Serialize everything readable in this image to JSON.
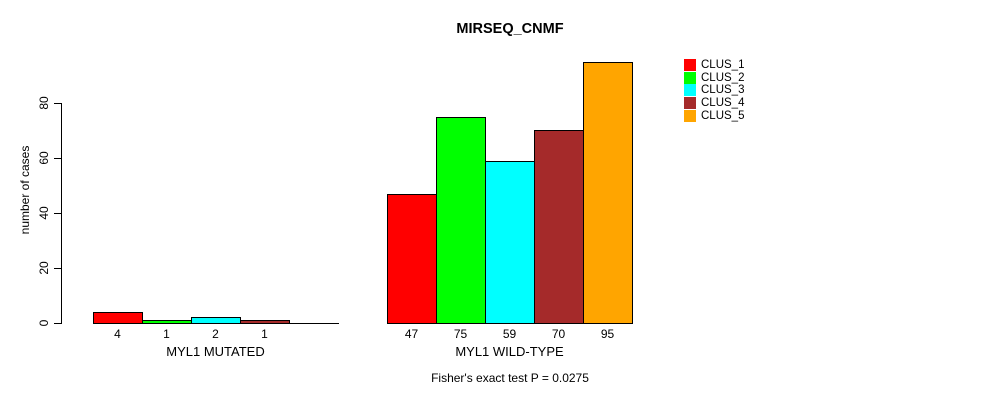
{
  "chart_data": {
    "type": "bar",
    "title": "MIRSEQ_CNMF",
    "ylabel": "number of cases",
    "xlabel": "",
    "yticks": [
      0,
      20,
      40,
      60,
      80
    ],
    "ylim": [
      0,
      97
    ],
    "grid": false,
    "legend_position": "right",
    "categories": [
      "MYL1 MUTATED",
      "MYL1 WILD-TYPE"
    ],
    "series_colors": [
      "#FF0000",
      "#00FF00",
      "#00FFFF",
      "#A52A2A",
      "#FFA500"
    ],
    "groups": [
      {
        "label": "MYL1 MUTATED",
        "values": [
          4,
          1,
          2,
          1,
          0
        ],
        "value_labels": [
          "4",
          "1",
          "2",
          "1",
          ""
        ]
      },
      {
        "label": "MYL1 WILD-TYPE",
        "values": [
          47,
          75,
          59,
          70,
          95
        ],
        "value_labels": [
          "47",
          "75",
          "59",
          "70",
          "95"
        ]
      }
    ],
    "legend": [
      {
        "label": "CLUS_1",
        "color": "#FF0000"
      },
      {
        "label": "CLUS_2",
        "color": "#00FF00"
      },
      {
        "label": "CLUS_3",
        "color": "#00FFFF"
      },
      {
        "label": "CLUS_4",
        "color": "#A52A2A"
      },
      {
        "label": "CLUS_5",
        "color": "#FFA500"
      }
    ],
    "annotation": "Fisher's exact test P = 0.0275"
  }
}
